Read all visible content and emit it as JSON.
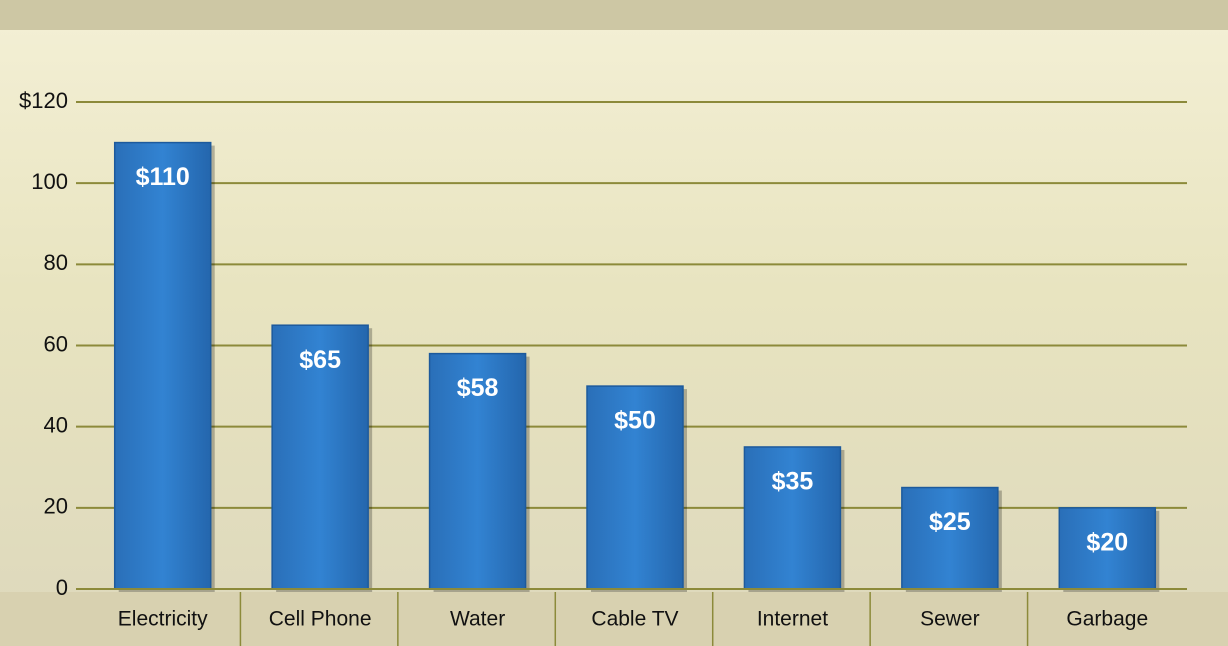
{
  "chart_data": {
    "type": "bar",
    "categories": [
      "Electricity",
      "Cell Phone",
      "Water",
      "Cable TV",
      "Internet",
      "Sewer",
      "Garbage"
    ],
    "values": [
      110,
      65,
      58,
      50,
      35,
      25,
      20
    ],
    "value_labels": [
      "$110",
      "$65",
      "$58",
      "$50",
      "$35",
      "$25",
      "$20"
    ],
    "color": "#2e7ac6",
    "ylim": [
      0,
      120
    ],
    "yticks": [
      0,
      20,
      40,
      60,
      80,
      100,
      {
        "value": 120,
        "label": "$120"
      }
    ],
    "grid": true
  }
}
